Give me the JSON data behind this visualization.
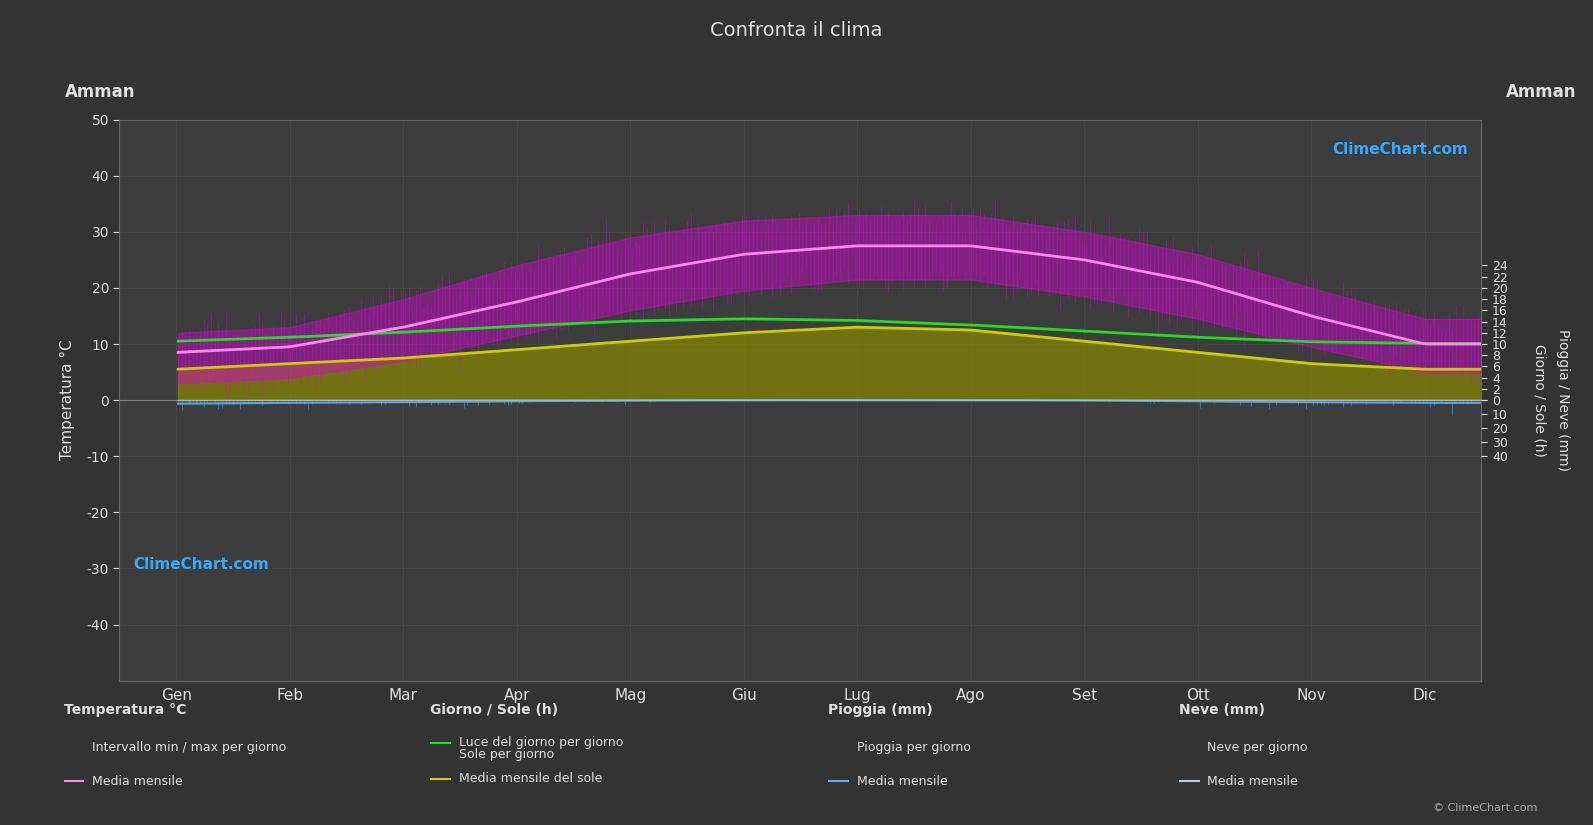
{
  "title": "Confronta il clima",
  "city": "Amman",
  "bg_color": "#333333",
  "plot_bg_color": "#3d3d3d",
  "grid_color": "#4a4a4a",
  "text_color": "#e0e0e0",
  "months": [
    "Gen",
    "Feb",
    "Mar",
    "Apr",
    "Mag",
    "Giu",
    "Lug",
    "Ago",
    "Set",
    "Ott",
    "Nov",
    "Dic"
  ],
  "temp_ylim": [
    -50,
    50
  ],
  "temp_mean_monthly": [
    8.5,
    9.5,
    13.0,
    17.5,
    22.5,
    26.0,
    27.5,
    27.5,
    25.0,
    21.0,
    15.0,
    10.0
  ],
  "temp_min_monthly": [
    3.0,
    4.0,
    7.0,
    11.5,
    16.0,
    19.5,
    21.5,
    21.5,
    18.5,
    14.5,
    9.5,
    5.0
  ],
  "temp_max_monthly": [
    12.0,
    13.0,
    18.0,
    24.0,
    29.0,
    32.0,
    33.0,
    33.0,
    30.0,
    26.0,
    20.0,
    14.5
  ],
  "daylight_monthly": [
    10.5,
    11.2,
    12.1,
    13.2,
    14.1,
    14.5,
    14.2,
    13.4,
    12.3,
    11.2,
    10.4,
    10.1
  ],
  "sunshine_monthly": [
    5.5,
    6.5,
    7.5,
    9.0,
    10.5,
    12.0,
    13.0,
    12.5,
    10.5,
    8.5,
    6.5,
    5.5
  ],
  "rainfall_daily_mean": [
    2.5,
    2.0,
    1.5,
    0.8,
    0.3,
    0.02,
    0.01,
    0.01,
    0.2,
    0.8,
    1.5,
    2.0
  ],
  "snowfall_daily_mean": [
    0.5,
    0.3,
    0.1,
    0.0,
    0.0,
    0.0,
    0.0,
    0.0,
    0.0,
    0.0,
    0.05,
    0.2
  ],
  "temp_noise_sigma": 1.5,
  "rain_color": "#3399ee",
  "snow_color": "#aabbcc",
  "rain_mean_color": "#55aaff",
  "snow_mean_color": "#bbccdd",
  "temp_fill_color": "#dd00dd",
  "temp_mean_color": "#ff88ee",
  "daylight_color": "#22dd22",
  "sunshine_fill_color": "#888800",
  "sunshine_mean_color": "#cccc00",
  "logo_text": "ClimeChart.com",
  "copyright_text": "© ClimeChart.com",
  "legend_title_temp": "Temperatura °C",
  "legend_title_sun": "Giorno / Sole (h)",
  "legend_title_rain": "Pioggia (mm)",
  "legend_title_snow": "Neve (mm)",
  "legend_item1_temp": "Intervallo min / max per giorno",
  "legend_item2_temp": "Media mensile",
  "legend_item1_sun": "Luce del giorno per giorno",
  "legend_item2_sun": "Sole per giorno",
  "legend_item3_sun": "Media mensile del sole",
  "legend_item1_rain": "Pioggia per giorno",
  "legend_item2_rain": "Media mensile",
  "legend_item1_snow": "Neve per giorno",
  "legend_item2_snow": "Media mensile",
  "ylabel_left": "Temperatura °C",
  "ylabel_right1": "Giorno / Sole (h)",
  "ylabel_right2": "Pioggia / Neve (mm)",
  "right_sun_ticks": [
    0,
    2,
    4,
    6,
    8,
    10,
    12,
    14,
    16,
    18,
    20,
    22,
    24
  ],
  "right_rain_ticks_mm": [
    0,
    10,
    20,
    30,
    40
  ],
  "rain_scale": 0.25,
  "left_yticks": [
    -40,
    -30,
    -20,
    -10,
    0,
    10,
    20,
    30,
    40,
    50
  ]
}
